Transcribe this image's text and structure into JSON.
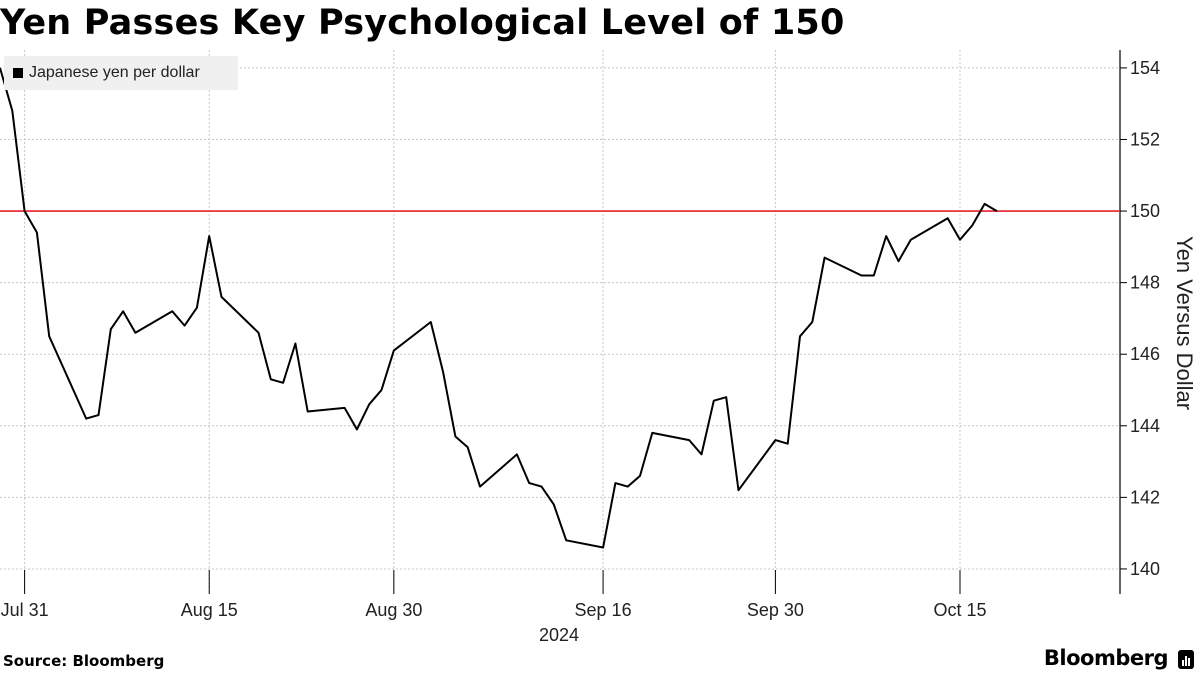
{
  "title": "Yen Passes Key Psychological Level of 150",
  "source": "Source: Bloomberg",
  "brand": "Bloomberg",
  "chart_data": {
    "type": "line",
    "title": "Yen Passes Key Psychological Level of 150",
    "ylabel": "Yen Versus Dollar",
    "xlabel": "2024",
    "ylim": [
      139.3,
      154.5
    ],
    "y_ticks": [
      140,
      142,
      144,
      146,
      148,
      150,
      152,
      154
    ],
    "x_ticks": [
      {
        "label": "Jul 31",
        "date": "2024-07-31"
      },
      {
        "label": "Aug 15",
        "date": "2024-08-15"
      },
      {
        "label": "Aug 30",
        "date": "2024-08-30"
      },
      {
        "label": "Sep 16",
        "date": "2024-09-16"
      },
      {
        "label": "Sep 30",
        "date": "2024-09-30"
      },
      {
        "label": "Oct 15",
        "date": "2024-10-15"
      }
    ],
    "grid": true,
    "legend_position": "top-left",
    "reference_line": {
      "y": 150,
      "color": "#e8202a"
    },
    "series": [
      {
        "name": "Japanese yen per dollar",
        "color": "#000000",
        "x": [
          "2024-07-29",
          "2024-07-30",
          "2024-07-31",
          "2024-08-01",
          "2024-08-02",
          "2024-08-05",
          "2024-08-06",
          "2024-08-07",
          "2024-08-08",
          "2024-08-09",
          "2024-08-12",
          "2024-08-13",
          "2024-08-14",
          "2024-08-15",
          "2024-08-16",
          "2024-08-19",
          "2024-08-20",
          "2024-08-21",
          "2024-08-22",
          "2024-08-23",
          "2024-08-26",
          "2024-08-27",
          "2024-08-28",
          "2024-08-29",
          "2024-08-30",
          "2024-09-02",
          "2024-09-03",
          "2024-09-04",
          "2024-09-05",
          "2024-09-06",
          "2024-09-09",
          "2024-09-10",
          "2024-09-11",
          "2024-09-12",
          "2024-09-13",
          "2024-09-16",
          "2024-09-17",
          "2024-09-18",
          "2024-09-19",
          "2024-09-20",
          "2024-09-23",
          "2024-09-24",
          "2024-09-25",
          "2024-09-26",
          "2024-09-27",
          "2024-09-30",
          "2024-10-01",
          "2024-10-02",
          "2024-10-03",
          "2024-10-04",
          "2024-10-07",
          "2024-10-08",
          "2024-10-09",
          "2024-10-10",
          "2024-10-11",
          "2024-10-14",
          "2024-10-15",
          "2024-10-16",
          "2024-10-17",
          "2024-10-18"
        ],
        "values": [
          154.0,
          152.8,
          150.0,
          149.4,
          146.5,
          144.2,
          144.3,
          146.7,
          147.2,
          146.6,
          147.2,
          146.8,
          147.3,
          149.3,
          147.6,
          146.6,
          145.3,
          145.2,
          146.3,
          144.4,
          144.5,
          143.9,
          144.6,
          145.0,
          146.1,
          146.9,
          145.5,
          143.7,
          143.4,
          142.3,
          143.2,
          142.4,
          142.3,
          141.8,
          140.8,
          140.6,
          142.4,
          142.3,
          142.6,
          143.8,
          143.6,
          143.2,
          144.7,
          144.8,
          142.2,
          143.6,
          143.5,
          146.5,
          146.9,
          148.7,
          148.2,
          148.2,
          149.3,
          148.6,
          149.2,
          149.8,
          149.2,
          149.6,
          150.2,
          150.0
        ]
      }
    ]
  }
}
